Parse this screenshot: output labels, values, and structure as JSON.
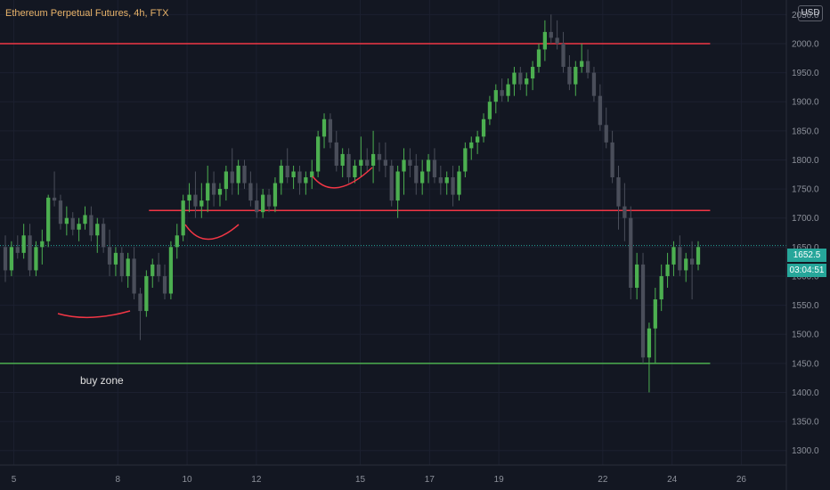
{
  "header": {
    "title": "Ethereum Perpetual Futures, 4h, FTX",
    "currency": "USD"
  },
  "price_tag": {
    "price": "1652.5",
    "countdown": "03:04:51"
  },
  "annotations": {
    "buy_zone": "buy zone"
  },
  "colors": {
    "background": "#131722",
    "up": "#4caf50",
    "down": "#4a4e5a",
    "resistance": "#f23645",
    "support": "#4caf50",
    "axis_text": "#8d919b",
    "title": "#e8b36a"
  },
  "chart_data": {
    "type": "candlestick",
    "title": "Ethereum Perpetual Futures, 4h, FTX",
    "ylim": [
      1275,
      2075
    ],
    "xlim": [
      4.6,
      27.3
    ],
    "y_ticks": [
      "1300.0",
      "1350.0",
      "1400.0",
      "1450.0",
      "1500.0",
      "1550.0",
      "1600.0",
      "1650.0",
      "1700.0",
      "1750.0",
      "1800.0",
      "1850.0",
      "1900.0",
      "1950.0",
      "2000.0",
      "2050.0"
    ],
    "x_ticks": [
      {
        "x": 5,
        "label": "5"
      },
      {
        "x": 8,
        "label": "8"
      },
      {
        "x": 10,
        "label": "10"
      },
      {
        "x": 12,
        "label": "12"
      },
      {
        "x": 15,
        "label": "15"
      },
      {
        "x": 17,
        "label": "17"
      },
      {
        "x": 19,
        "label": "19"
      },
      {
        "x": 22,
        "label": "22"
      },
      {
        "x": 24,
        "label": "24"
      },
      {
        "x": 26,
        "label": "26"
      }
    ],
    "horizontal_lines": [
      {
        "price": 2000,
        "color": "#f23645",
        "x_from": 4.6,
        "x_to": 25.1
      },
      {
        "price": 1713,
        "color": "#f23645",
        "x_from": 8.9,
        "x_to": 25.1
      },
      {
        "price": 1450,
        "color": "#4caf50",
        "x_from": 4.6,
        "x_to": 25.1
      }
    ],
    "current_price": 1652.5,
    "series": [
      {
        "ohlc": [
          [
            1650,
            1670,
            1590,
            1610
          ],
          [
            1610,
            1660,
            1600,
            1650
          ],
          [
            1650,
            1670,
            1630,
            1640
          ],
          [
            1640,
            1690,
            1630,
            1670
          ],
          [
            1670,
            1690,
            1600,
            1610
          ],
          [
            1610,
            1660,
            1600,
            1650
          ],
          [
            1650,
            1680,
            1620,
            1660
          ],
          [
            1660,
            1740,
            1650,
            1735
          ],
          [
            1735,
            1780,
            1720,
            1730
          ],
          [
            1730,
            1740,
            1680,
            1690
          ],
          [
            1690,
            1720,
            1670,
            1700
          ],
          [
            1700,
            1710,
            1670,
            1680
          ],
          [
            1680,
            1700,
            1660,
            1690
          ],
          [
            1690,
            1720,
            1680,
            1705
          ],
          [
            1705,
            1720,
            1660,
            1670
          ],
          [
            1670,
            1700,
            1640,
            1690
          ],
          [
            1690,
            1700,
            1640,
            1650
          ],
          [
            1650,
            1680,
            1600,
            1620
          ],
          [
            1620,
            1650,
            1600,
            1640
          ],
          [
            1640,
            1650,
            1590,
            1600
          ],
          [
            1600,
            1640,
            1580,
            1630
          ],
          [
            1630,
            1650,
            1560,
            1570
          ],
          [
            1570,
            1580,
            1490,
            1540
          ],
          [
            1540,
            1610,
            1530,
            1600
          ],
          [
            1600,
            1630,
            1580,
            1620
          ],
          [
            1620,
            1640,
            1590,
            1600
          ],
          [
            1600,
            1620,
            1560,
            1570
          ],
          [
            1570,
            1660,
            1560,
            1650
          ],
          [
            1650,
            1690,
            1630,
            1670
          ],
          [
            1670,
            1740,
            1660,
            1730
          ],
          [
            1730,
            1760,
            1710,
            1740
          ],
          [
            1740,
            1780,
            1700,
            1720
          ],
          [
            1720,
            1760,
            1700,
            1730
          ],
          [
            1730,
            1790,
            1710,
            1760
          ],
          [
            1760,
            1780,
            1720,
            1740
          ],
          [
            1740,
            1760,
            1720,
            1750
          ],
          [
            1750,
            1790,
            1730,
            1780
          ],
          [
            1780,
            1820,
            1740,
            1760
          ],
          [
            1760,
            1800,
            1740,
            1790
          ],
          [
            1790,
            1800,
            1750,
            1760
          ],
          [
            1760,
            1780,
            1720,
            1730
          ],
          [
            1730,
            1760,
            1700,
            1710
          ],
          [
            1710,
            1750,
            1700,
            1740
          ],
          [
            1740,
            1750,
            1710,
            1720
          ],
          [
            1720,
            1770,
            1710,
            1760
          ],
          [
            1760,
            1800,
            1740,
            1790
          ],
          [
            1790,
            1820,
            1760,
            1770
          ],
          [
            1770,
            1790,
            1750,
            1780
          ],
          [
            1780,
            1790,
            1740,
            1760
          ],
          [
            1760,
            1780,
            1740,
            1770
          ],
          [
            1770,
            1800,
            1750,
            1780
          ],
          [
            1780,
            1850,
            1770,
            1840
          ],
          [
            1840,
            1880,
            1820,
            1870
          ],
          [
            1870,
            1880,
            1820,
            1830
          ],
          [
            1830,
            1850,
            1780,
            1790
          ],
          [
            1790,
            1820,
            1770,
            1810
          ],
          [
            1810,
            1820,
            1760,
            1770
          ],
          [
            1770,
            1800,
            1760,
            1790
          ],
          [
            1790,
            1840,
            1770,
            1800
          ],
          [
            1800,
            1820,
            1780,
            1790
          ],
          [
            1790,
            1850,
            1760,
            1810
          ],
          [
            1810,
            1830,
            1780,
            1800
          ],
          [
            1800,
            1830,
            1770,
            1790
          ],
          [
            1790,
            1800,
            1720,
            1730
          ],
          [
            1730,
            1790,
            1700,
            1780
          ],
          [
            1780,
            1820,
            1740,
            1800
          ],
          [
            1800,
            1820,
            1770,
            1790
          ],
          [
            1790,
            1810,
            1740,
            1760
          ],
          [
            1760,
            1800,
            1740,
            1780
          ],
          [
            1780,
            1810,
            1760,
            1800
          ],
          [
            1800,
            1820,
            1760,
            1770
          ],
          [
            1770,
            1790,
            1740,
            1760
          ],
          [
            1760,
            1780,
            1740,
            1770
          ],
          [
            1770,
            1790,
            1720,
            1740
          ],
          [
            1740,
            1790,
            1730,
            1780
          ],
          [
            1780,
            1830,
            1770,
            1820
          ],
          [
            1820,
            1840,
            1800,
            1830
          ],
          [
            1830,
            1850,
            1810,
            1840
          ],
          [
            1840,
            1880,
            1830,
            1870
          ],
          [
            1870,
            1910,
            1860,
            1900
          ],
          [
            1900,
            1930,
            1880,
            1920
          ],
          [
            1920,
            1940,
            1900,
            1910
          ],
          [
            1910,
            1940,
            1900,
            1930
          ],
          [
            1930,
            1960,
            1910,
            1950
          ],
          [
            1950,
            1960,
            1920,
            1930
          ],
          [
            1930,
            1950,
            1910,
            1940
          ],
          [
            1940,
            1970,
            1920,
            1960
          ],
          [
            1960,
            2000,
            1950,
            1990
          ],
          [
            1990,
            2040,
            1970,
            2020
          ],
          [
            2020,
            2050,
            2000,
            2010
          ],
          [
            2010,
            2040,
            1990,
            2000
          ],
          [
            2000,
            2020,
            1950,
            1960
          ],
          [
            1960,
            1980,
            1920,
            1930
          ],
          [
            1930,
            1970,
            1910,
            1960
          ],
          [
            1960,
            2000,
            1950,
            1970
          ],
          [
            1970,
            1990,
            1940,
            1950
          ],
          [
            1950,
            1960,
            1900,
            1910
          ],
          [
            1910,
            1930,
            1850,
            1860
          ],
          [
            1860,
            1890,
            1820,
            1830
          ],
          [
            1830,
            1850,
            1760,
            1770
          ],
          [
            1770,
            1790,
            1680,
            1720
          ],
          [
            1720,
            1760,
            1660,
            1700
          ],
          [
            1700,
            1720,
            1560,
            1580
          ],
          [
            1580,
            1640,
            1560,
            1620
          ],
          [
            1620,
            1640,
            1450,
            1460
          ],
          [
            1460,
            1520,
            1400,
            1510
          ],
          [
            1510,
            1580,
            1450,
            1560
          ],
          [
            1560,
            1620,
            1540,
            1600
          ],
          [
            1600,
            1640,
            1580,
            1620
          ],
          [
            1620,
            1660,
            1600,
            1650
          ],
          [
            1650,
            1670,
            1600,
            1610
          ],
          [
            1610,
            1640,
            1590,
            1630
          ],
          [
            1630,
            1660,
            1560,
            1620
          ],
          [
            1620,
            1660,
            1610,
            1650
          ]
        ]
      }
    ]
  }
}
